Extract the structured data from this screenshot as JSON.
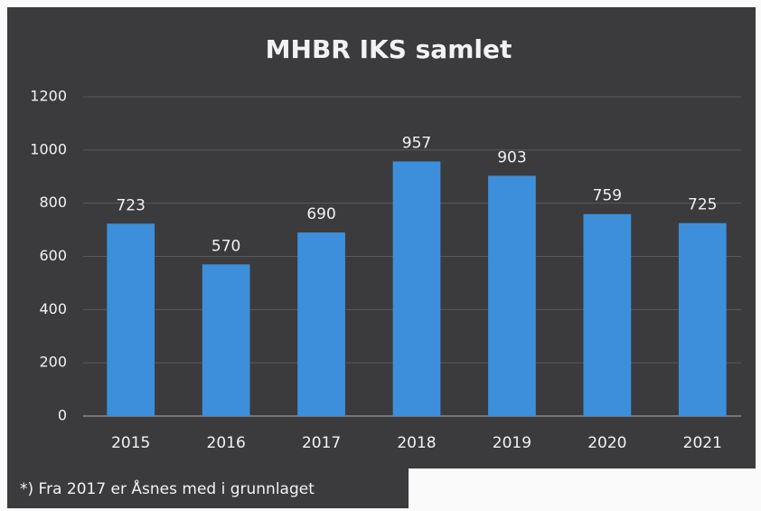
{
  "chart_data": {
    "type": "bar",
    "title": "MHBR IKS samlet",
    "categories": [
      "2015",
      "2016",
      "2017",
      "2018",
      "2019",
      "2020",
      "2021"
    ],
    "values": [
      723,
      570,
      690,
      957,
      903,
      759,
      725
    ],
    "color": "#3d8fdb",
    "ylim": [
      0,
      1200
    ],
    "yticks": [
      0,
      200,
      400,
      600,
      800,
      1000,
      1200
    ],
    "grid": true,
    "footnote": "*) Fra 2017 er Åsnes med i grunnlaget"
  }
}
